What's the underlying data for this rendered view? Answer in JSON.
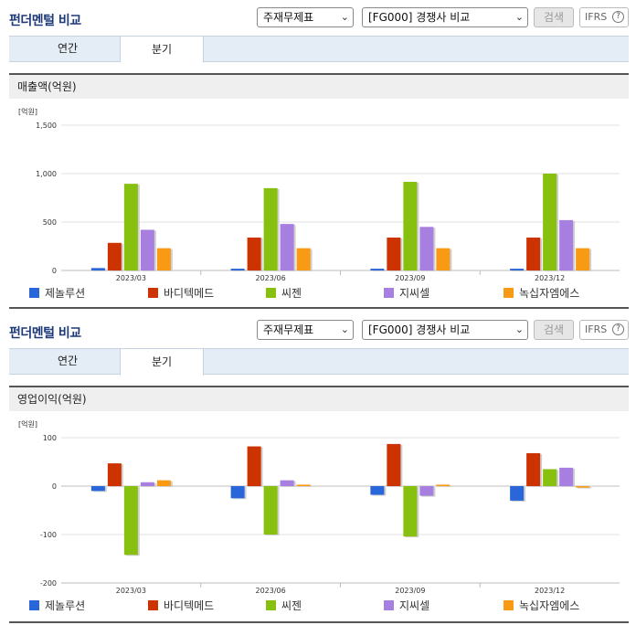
{
  "header": {
    "title": "펀더멘털 비교",
    "select_statement": "주재무제표",
    "select_compare": "[FG000] 경쟁사 비교",
    "search_label": "검색",
    "ifrs_label": "IFRS",
    "help_glyph": "?"
  },
  "tabs": [
    {
      "label": "연간",
      "active": false
    },
    {
      "label": "분기",
      "active": true
    }
  ],
  "colors": {
    "제놀루션": "#2966d9",
    "바디텍메드": "#cc3300",
    "씨젠": "#88c010",
    "지씨셀": "#a77fe0",
    "녹십자엠에스": "#f89a14"
  },
  "chart_data": [
    {
      "type": "bar",
      "title": "매출액(억원)",
      "unit": "[억원]",
      "categories": [
        "2023/03",
        "2023/06",
        "2023/09",
        "2023/12"
      ],
      "ylim": [
        0,
        1500
      ],
      "yticks": [
        0,
        500,
        1000,
        1500
      ],
      "ytick_labels": [
        "0",
        "500",
        "1,000",
        "1,500"
      ],
      "grid": true,
      "legend_position": "bottom",
      "series": [
        {
          "name": "제놀루션",
          "values": [
            25,
            18,
            18,
            18
          ]
        },
        {
          "name": "바디텍메드",
          "values": [
            285,
            340,
            340,
            340
          ]
        },
        {
          "name": "씨젠",
          "values": [
            895,
            850,
            915,
            1000
          ]
        },
        {
          "name": "지씨셀",
          "values": [
            420,
            480,
            450,
            520
          ]
        },
        {
          "name": "녹십자엠에스",
          "values": [
            230,
            230,
            230,
            230
          ]
        }
      ]
    },
    {
      "type": "bar",
      "title": "영업이익(억원)",
      "unit": "[억원]",
      "categories": [
        "2023/03",
        "2023/06",
        "2023/09",
        "2023/12"
      ],
      "ylim": [
        -200,
        100
      ],
      "yticks": [
        -200,
        -100,
        0,
        100
      ],
      "ytick_labels": [
        "-200",
        "-100",
        "0",
        "100"
      ],
      "grid": true,
      "legend_position": "bottom",
      "series": [
        {
          "name": "제놀루션",
          "values": [
            -10,
            -25,
            -18,
            -30
          ]
        },
        {
          "name": "바디텍메드",
          "values": [
            47,
            82,
            87,
            68
          ]
        },
        {
          "name": "씨젠",
          "values": [
            -142,
            -100,
            -104,
            35
          ]
        },
        {
          "name": "지씨셀",
          "values": [
            8,
            12,
            -20,
            38
          ]
        },
        {
          "name": "녹십자엠에스",
          "values": [
            12,
            3,
            3,
            -3
          ]
        }
      ]
    }
  ]
}
